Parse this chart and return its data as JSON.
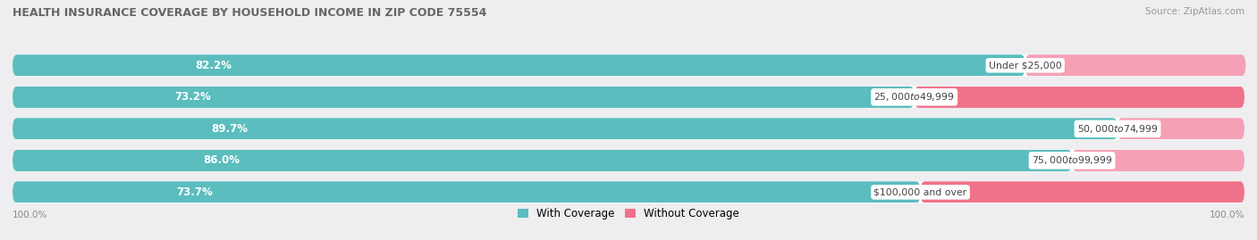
{
  "title": "HEALTH INSURANCE COVERAGE BY HOUSEHOLD INCOME IN ZIP CODE 75554",
  "source": "Source: ZipAtlas.com",
  "categories": [
    "Under $25,000",
    "$25,000 to $49,999",
    "$50,000 to $74,999",
    "$75,000 to $99,999",
    "$100,000 and over"
  ],
  "with_coverage": [
    82.2,
    73.2,
    89.7,
    86.0,
    73.7
  ],
  "without_coverage": [
    17.9,
    26.8,
    10.3,
    14.0,
    26.3
  ],
  "color_with": "#5bbdbe",
  "color_without_dark": "#f0728a",
  "color_without_light": "#f5a0b5",
  "bg_color": "#eeeef0",
  "bar_bg": "#ffffff",
  "legend_with": "With Coverage",
  "legend_without": "Without Coverage",
  "axis_label_left": "100.0%",
  "axis_label_right": "100.0%",
  "title_color": "#666666",
  "source_color": "#999999",
  "pct_label_color": "#ffffff",
  "cat_label_color": "#444444"
}
